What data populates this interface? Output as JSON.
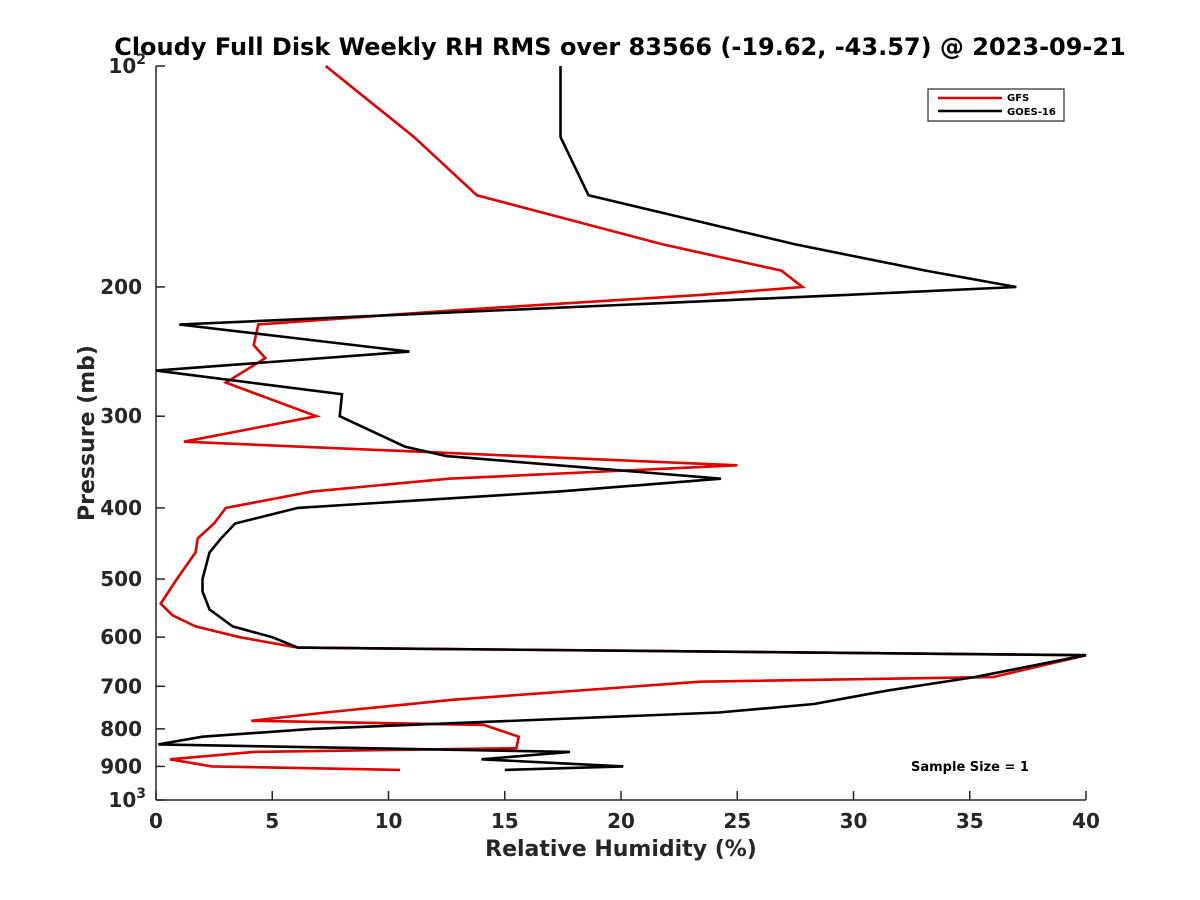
{
  "chart_data": {
    "type": "line",
    "title": "Cloudy Full Disk Weekly RH RMS over 83566 (-19.62, -43.57) @ 2023-09-21",
    "xlabel": "Relative Humidity (%)",
    "ylabel": "Pressure (mb)",
    "xlim": [
      0,
      40
    ],
    "ylim": [
      100,
      1000
    ],
    "y_scale": "log",
    "y_reversed": true,
    "grid": false,
    "legend_position": "top-right",
    "annotation": "Sample Size = 1",
    "x_ticks": [
      0,
      5,
      10,
      15,
      20,
      25,
      30,
      35,
      40
    ],
    "y_ticks": [
      {
        "value": 100,
        "base": "10",
        "exp": "2",
        "label": ""
      },
      {
        "value": 200,
        "label": "200"
      },
      {
        "value": 300,
        "label": "300"
      },
      {
        "value": 400,
        "label": "400"
      },
      {
        "value": 500,
        "label": "500"
      },
      {
        "value": 600,
        "label": "600"
      },
      {
        "value": 700,
        "label": "700"
      },
      {
        "value": 800,
        "label": "800"
      },
      {
        "value": 900,
        "label": "900"
      },
      {
        "value": 1000,
        "base": "10",
        "exp": "3",
        "label": ""
      }
    ],
    "series": [
      {
        "name": "GFS",
        "color": "#e00000",
        "points": [
          [
            7.3,
            100
          ],
          [
            11.1,
            125
          ],
          [
            13.8,
            150
          ],
          [
            21.8,
            175
          ],
          [
            26.9,
            190
          ],
          [
            27.8,
            200
          ],
          [
            23.5,
            205
          ],
          [
            13.0,
            215
          ],
          [
            4.4,
            225
          ],
          [
            4.2,
            240
          ],
          [
            4.7,
            250
          ],
          [
            3.0,
            270
          ],
          [
            6.9,
            300
          ],
          [
            1.2,
            325
          ],
          [
            25.0,
            350
          ],
          [
            12.6,
            365
          ],
          [
            6.7,
            380
          ],
          [
            3.0,
            400
          ],
          [
            2.5,
            420
          ],
          [
            1.8,
            440
          ],
          [
            1.7,
            460
          ],
          [
            0.9,
            500
          ],
          [
            0.2,
            540
          ],
          [
            0.7,
            560
          ],
          [
            1.7,
            580
          ],
          [
            3.6,
            600
          ],
          [
            6.1,
            620
          ],
          [
            40.0,
            635
          ],
          [
            36.0,
            680
          ],
          [
            23.4,
            690
          ],
          [
            12.8,
            730
          ],
          [
            7.3,
            760
          ],
          [
            4.1,
            780
          ],
          [
            14.1,
            790
          ],
          [
            15.6,
            820
          ],
          [
            15.5,
            850
          ],
          [
            4.2,
            860
          ],
          [
            0.6,
            880
          ],
          [
            2.4,
            900
          ],
          [
            10.5,
            910
          ]
        ]
      },
      {
        "name": "GOES-16",
        "color": "#000000",
        "points": [
          [
            17.4,
            100
          ],
          [
            17.4,
            125
          ],
          [
            18.6,
            150
          ],
          [
            27.5,
            175
          ],
          [
            33.1,
            190
          ],
          [
            37.0,
            200
          ],
          [
            29.8,
            205
          ],
          [
            1.0,
            225
          ],
          [
            10.9,
            245
          ],
          [
            0.0,
            260
          ],
          [
            8.0,
            280
          ],
          [
            7.9,
            300
          ],
          [
            10.7,
            330
          ],
          [
            12.5,
            340
          ],
          [
            24.3,
            365
          ],
          [
            17.3,
            380
          ],
          [
            6.1,
            400
          ],
          [
            3.4,
            420
          ],
          [
            2.8,
            440
          ],
          [
            2.3,
            460
          ],
          [
            2.0,
            500
          ],
          [
            2.0,
            520
          ],
          [
            2.3,
            550
          ],
          [
            3.3,
            580
          ],
          [
            5.0,
            600
          ],
          [
            6.1,
            620
          ],
          [
            40.0,
            635
          ],
          [
            35.2,
            680
          ],
          [
            31.4,
            710
          ],
          [
            28.3,
            740
          ],
          [
            24.2,
            760
          ],
          [
            6.7,
            800
          ],
          [
            2.0,
            820
          ],
          [
            0.1,
            840
          ],
          [
            17.8,
            860
          ],
          [
            14.0,
            880
          ],
          [
            20.1,
            900
          ],
          [
            15.0,
            910
          ]
        ]
      }
    ]
  }
}
